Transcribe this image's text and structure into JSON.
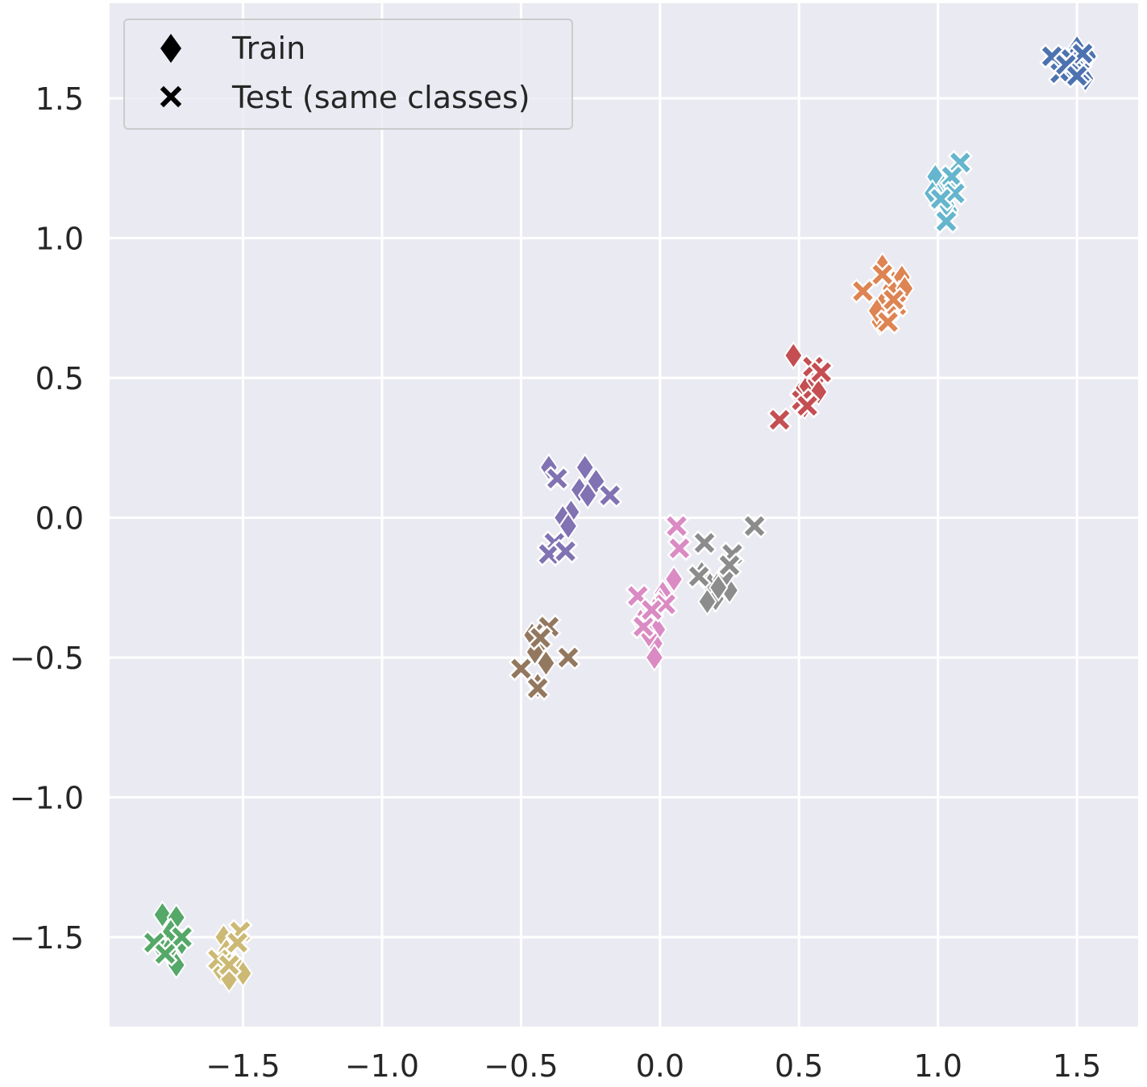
{
  "chart_data": {
    "type": "scatter",
    "title": "",
    "xlabel": "",
    "ylabel": "",
    "xlim": [
      -1.98,
      1.72
    ],
    "ylim": [
      -1.82,
      1.84
    ],
    "xticks": [
      -1.5,
      -1.0,
      -0.5,
      0.0,
      0.5,
      1.0,
      1.5
    ],
    "yticks": [
      -1.5,
      -1.0,
      -0.5,
      0.0,
      0.5,
      1.0,
      1.5
    ],
    "xtick_labels": [
      "−1.5",
      "−1.0",
      "−0.5",
      "0.0",
      "0.5",
      "1.0",
      "1.5"
    ],
    "ytick_labels": [
      "−1.5",
      "−1.0",
      "−0.5",
      "0.0",
      "0.5",
      "1.0",
      "1.5"
    ],
    "grid": true,
    "legend": {
      "position": "top-left",
      "entries": [
        {
          "label": "Train",
          "marker": "diamond"
        },
        {
          "label": "Test (same classes)",
          "marker": "x"
        }
      ]
    },
    "series": [
      {
        "color": "#4c72b0",
        "train": [
          [
            1.5,
            1.68
          ],
          [
            1.52,
            1.62
          ],
          [
            1.47,
            1.6
          ],
          [
            1.53,
            1.57
          ],
          [
            1.49,
            1.65
          ],
          [
            1.54,
            1.65
          ]
        ],
        "test": [
          [
            1.41,
            1.65
          ],
          [
            1.44,
            1.59
          ],
          [
            1.48,
            1.64
          ],
          [
            1.51,
            1.59
          ],
          [
            1.52,
            1.66
          ],
          [
            1.46,
            1.62
          ],
          [
            1.5,
            1.58
          ]
        ]
      },
      {
        "color": "#64b5cd",
        "train": [
          [
            0.99,
            1.22
          ],
          [
            1.02,
            1.18
          ],
          [
            1.04,
            1.1
          ],
          [
            1.0,
            1.15
          ],
          [
            1.06,
            1.2
          ],
          [
            1.03,
            1.12
          ],
          [
            0.98,
            1.16
          ]
        ],
        "test": [
          [
            1.08,
            1.27
          ],
          [
            1.05,
            1.22
          ],
          [
            1.03,
            1.06
          ],
          [
            1.06,
            1.16
          ],
          [
            1.01,
            1.14
          ]
        ]
      },
      {
        "color": "#dd8452",
        "train": [
          [
            0.8,
            0.9
          ],
          [
            0.84,
            0.84
          ],
          [
            0.87,
            0.86
          ],
          [
            0.81,
            0.78
          ],
          [
            0.85,
            0.75
          ],
          [
            0.79,
            0.7
          ],
          [
            0.82,
            0.72
          ],
          [
            0.86,
            0.8
          ],
          [
            0.78,
            0.74
          ],
          [
            0.83,
            0.82
          ],
          [
            0.88,
            0.82
          ]
        ],
        "test": [
          [
            0.73,
            0.81
          ],
          [
            0.8,
            0.87
          ],
          [
            0.85,
            0.76
          ],
          [
            0.82,
            0.7
          ],
          [
            0.84,
            0.78
          ]
        ]
      },
      {
        "color": "#c44e52",
        "train": [
          [
            0.48,
            0.58
          ],
          [
            0.5,
            0.44
          ],
          [
            0.53,
            0.47
          ],
          [
            0.56,
            0.49
          ],
          [
            0.52,
            0.4
          ],
          [
            0.57,
            0.45
          ]
        ],
        "test": [
          [
            0.43,
            0.35
          ],
          [
            0.55,
            0.54
          ],
          [
            0.58,
            0.52
          ],
          [
            0.51,
            0.42
          ],
          [
            0.53,
            0.4
          ]
        ]
      },
      {
        "color": "#8172b3",
        "train": [
          [
            -0.4,
            0.18
          ],
          [
            -0.27,
            0.18
          ],
          [
            -0.23,
            0.13
          ],
          [
            -0.29,
            0.1
          ],
          [
            -0.26,
            0.08
          ],
          [
            -0.32,
            0.02
          ],
          [
            -0.35,
            0.0
          ],
          [
            -0.33,
            -0.03
          ]
        ],
        "test": [
          [
            -0.37,
            0.14
          ],
          [
            -0.18,
            0.08
          ],
          [
            -0.38,
            -0.09
          ],
          [
            -0.4,
            -0.13
          ],
          [
            -0.34,
            -0.12
          ]
        ]
      },
      {
        "color": "#da8bc3",
        "train": [
          [
            0.05,
            -0.22
          ],
          [
            0.01,
            -0.27
          ],
          [
            -0.02,
            -0.34
          ],
          [
            -0.07,
            -0.37
          ],
          [
            -0.01,
            -0.4
          ],
          [
            -0.02,
            -0.45
          ],
          [
            -0.02,
            -0.5
          ],
          [
            0.0,
            -0.3
          ],
          [
            -0.04,
            -0.42
          ]
        ],
        "test": [
          [
            0.06,
            -0.03
          ],
          [
            0.07,
            -0.11
          ],
          [
            -0.08,
            -0.28
          ],
          [
            0.02,
            -0.31
          ],
          [
            -0.06,
            -0.39
          ],
          [
            -0.03,
            -0.33
          ]
        ]
      },
      {
        "color": "#8c8c8c",
        "train": [
          [
            0.15,
            -0.2
          ],
          [
            0.18,
            -0.24
          ],
          [
            0.22,
            -0.22
          ],
          [
            0.25,
            -0.26
          ],
          [
            0.2,
            -0.29
          ],
          [
            0.17,
            -0.3
          ],
          [
            0.24,
            -0.2
          ],
          [
            0.21,
            -0.25
          ]
        ],
        "test": [
          [
            0.16,
            -0.09
          ],
          [
            0.34,
            -0.03
          ],
          [
            0.26,
            -0.13
          ],
          [
            0.25,
            -0.17
          ],
          [
            0.14,
            -0.21
          ]
        ]
      },
      {
        "color": "#937860",
        "train": [
          [
            -0.46,
            -0.42
          ],
          [
            -0.43,
            -0.45
          ],
          [
            -0.42,
            -0.4
          ],
          [
            -0.45,
            -0.48
          ],
          [
            -0.41,
            -0.52
          ],
          [
            -0.44,
            -0.6
          ]
        ],
        "test": [
          [
            -0.4,
            -0.39
          ],
          [
            -0.33,
            -0.5
          ],
          [
            -0.5,
            -0.54
          ],
          [
            -0.44,
            -0.61
          ],
          [
            -0.43,
            -0.43
          ]
        ]
      },
      {
        "color": "#55a868",
        "train": [
          [
            -1.79,
            -1.42
          ],
          [
            -1.74,
            -1.43
          ],
          [
            -1.76,
            -1.48
          ],
          [
            -1.8,
            -1.53
          ],
          [
            -1.77,
            -1.55
          ],
          [
            -1.74,
            -1.6
          ],
          [
            -1.72,
            -1.52
          ]
        ],
        "test": [
          [
            -1.82,
            -1.52
          ],
          [
            -1.72,
            -1.5
          ],
          [
            -1.78,
            -1.56
          ]
        ]
      },
      {
        "color": "#ccb974",
        "train": [
          [
            -1.57,
            -1.5
          ],
          [
            -1.54,
            -1.58
          ],
          [
            -1.58,
            -1.62
          ],
          [
            -1.55,
            -1.65
          ],
          [
            -1.51,
            -1.62
          ],
          [
            -1.5,
            -1.63
          ],
          [
            -1.56,
            -1.55
          ]
        ],
        "test": [
          [
            -1.51,
            -1.48
          ],
          [
            -1.52,
            -1.52
          ],
          [
            -1.59,
            -1.58
          ],
          [
            -1.55,
            -1.6
          ]
        ]
      }
    ]
  }
}
